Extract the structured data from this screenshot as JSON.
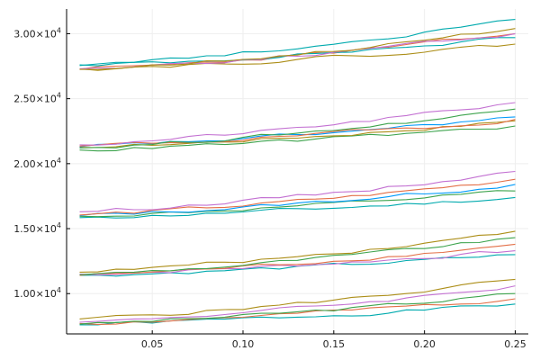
{
  "chart_data": {
    "type": "line",
    "x_range": [
      0.01,
      0.25
    ],
    "x_points": 25,
    "xlim": [
      0.0028,
      0.2572
    ],
    "ylim": [
      6900,
      31900
    ],
    "x_ticks": [
      0.05,
      0.1,
      0.15,
      0.2,
      0.25
    ],
    "x_tick_labels": [
      "0.05",
      "0.10",
      "0.15",
      "0.20",
      "0.25"
    ],
    "y_ticks": [
      10000,
      15000,
      20000,
      25000,
      30000
    ],
    "y_tick_labels": [
      {
        "mantissa": "1.00×10",
        "exp": "4"
      },
      {
        "mantissa": "1.50×10",
        "exp": "4"
      },
      {
        "mantissa": "2.00×10",
        "exp": "4"
      },
      {
        "mantissa": "2.50×10",
        "exp": "4"
      },
      {
        "mantissa": "3.00×10",
        "exp": "4"
      }
    ],
    "grid": true,
    "legend": "none",
    "palette": [
      "#009AFA",
      "#E36F47",
      "#3EA44E",
      "#C371D2",
      "#AC8E18",
      "#00AAAE"
    ],
    "series": [
      {
        "start": 7600,
        "end": 9200,
        "color": "#00AAAE",
        "seed": 1
      },
      {
        "start": 7700,
        "end": 9600,
        "color": "#E36F47",
        "seed": 2
      },
      {
        "start": 7650,
        "end": 10000,
        "color": "#3EA44E",
        "seed": 3
      },
      {
        "start": 7800,
        "end": 10600,
        "color": "#C371D2",
        "seed": 4
      },
      {
        "start": 8050,
        "end": 11100,
        "color": "#AC8E18",
        "seed": 5
      },
      {
        "start": 11400,
        "end": 13000,
        "color": "#00AAAE",
        "seed": 6
      },
      {
        "start": 11500,
        "end": 13300,
        "color": "#C371D2",
        "seed": 7
      },
      {
        "start": 11400,
        "end": 13800,
        "color": "#E36F47",
        "seed": 8
      },
      {
        "start": 11450,
        "end": 14300,
        "color": "#3EA44E",
        "seed": 9
      },
      {
        "start": 11650,
        "end": 14800,
        "color": "#AC8E18",
        "seed": 10
      },
      {
        "start": 15850,
        "end": 17400,
        "color": "#00AAAE",
        "seed": 11
      },
      {
        "start": 15950,
        "end": 17900,
        "color": "#3EA44E",
        "seed": 12
      },
      {
        "start": 16000,
        "end": 18400,
        "color": "#009AFA",
        "seed": 13
      },
      {
        "start": 16050,
        "end": 18800,
        "color": "#E36F47",
        "seed": 14
      },
      {
        "start": 16300,
        "end": 19400,
        "color": "#C371D2",
        "seed": 15
      },
      {
        "start": 21050,
        "end": 22900,
        "color": "#3EA44E",
        "seed": 16
      },
      {
        "start": 21250,
        "end": 23300,
        "color": "#AC8E18",
        "seed": 17
      },
      {
        "start": 21300,
        "end": 23600,
        "color": "#009AFA",
        "seed": 18
      },
      {
        "start": 21350,
        "end": 23400,
        "color": "#E36F47",
        "seed": 19
      },
      {
        "start": 21200,
        "end": 24200,
        "color": "#3EA44E",
        "seed": 20
      },
      {
        "start": 21450,
        "end": 24700,
        "color": "#C371D2",
        "seed": 21
      },
      {
        "start": 27300,
        "end": 29200,
        "color": "#AC8E18",
        "seed": 22
      },
      {
        "start": 27250,
        "end": 30000,
        "color": "#E36F47",
        "seed": 23
      },
      {
        "start": 27550,
        "end": 29700,
        "color": "#00AAAE",
        "seed": 24
      },
      {
        "start": 27300,
        "end": 30000,
        "color": "#C371D2",
        "seed": 25
      },
      {
        "start": 27250,
        "end": 30400,
        "color": "#AC8E18",
        "seed": 26
      },
      {
        "start": 27600,
        "end": 31100,
        "color": "#00AAAE",
        "seed": 27
      }
    ]
  }
}
